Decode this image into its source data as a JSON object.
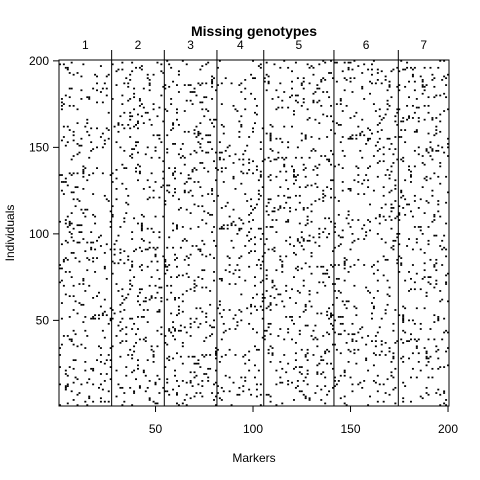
{
  "chart_data": {
    "type": "heatmap",
    "title": "Missing genotypes",
    "xlabel": "Markers",
    "ylabel": "Individuals",
    "xlim": [
      0.5,
      200.5
    ],
    "ylim": [
      0.5,
      200.5
    ],
    "x_ticks": [
      50,
      100,
      150,
      200
    ],
    "y_ticks": [
      50,
      100,
      150,
      200
    ],
    "chromosomes": [
      {
        "label": "1",
        "start": 1,
        "end": 27
      },
      {
        "label": "2",
        "start": 28,
        "end": 54
      },
      {
        "label": "3",
        "start": 55,
        "end": 81
      },
      {
        "label": "4",
        "start": 82,
        "end": 105
      },
      {
        "label": "5",
        "start": 106,
        "end": 141
      },
      {
        "label": "6",
        "start": 142,
        "end": 174
      },
      {
        "label": "7",
        "start": 175,
        "end": 200
      }
    ],
    "n_markers": 200,
    "n_individuals": 200,
    "missing_fraction": 0.055,
    "missing_color": "#000000",
    "background_color": "#ffffff"
  }
}
